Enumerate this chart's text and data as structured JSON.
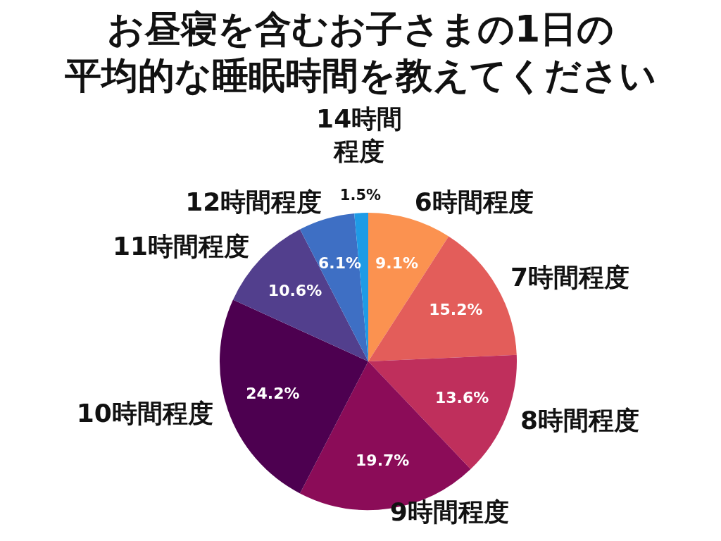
{
  "chart_data": {
    "type": "pie",
    "title": "お昼寝を含むお子さまの1日の",
    "subtitle": "平均的な睡眠時間を教えてください",
    "categories": [
      "6時間程度",
      "7時間程度",
      "8時間程度",
      "9時間程度",
      "10時間程度",
      "11時間程度",
      "12時間程度",
      "14時間程度"
    ],
    "values": [
      9.1,
      15.2,
      13.6,
      19.7,
      24.2,
      10.6,
      6.1,
      1.5
    ],
    "value_labels": [
      "9.1%",
      "15.2%",
      "13.6%",
      "19.7%",
      "24.2%",
      "10.6%",
      "6.1%",
      "1.5%"
    ],
    "colors": [
      "#fb9250",
      "#e35d5a",
      "#bf2f5c",
      "#8b0c58",
      "#4d0050",
      "#523f8d",
      "#3e6fc4",
      "#1e9be6"
    ],
    "legend": false
  }
}
